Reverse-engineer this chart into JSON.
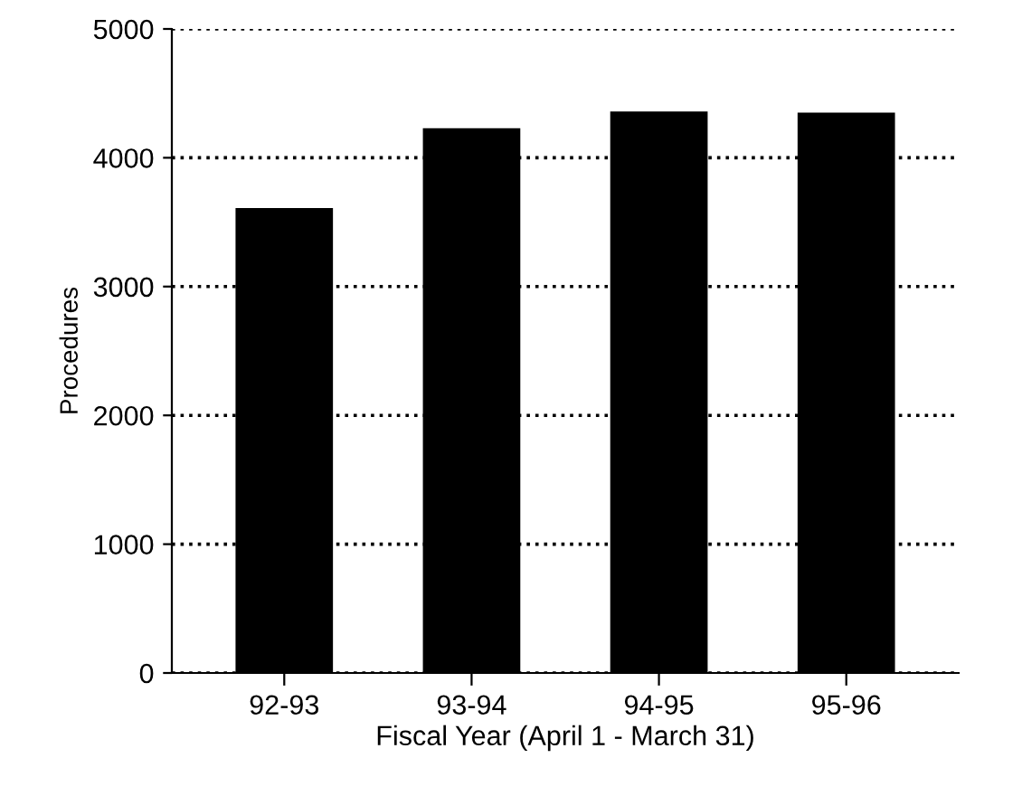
{
  "chart_data": {
    "type": "bar",
    "xlabel": "Fiscal Year (April 1 - March 31)",
    "ylabel": "Procedures",
    "categories": [
      "92-93",
      "93-94",
      "94-95",
      "95-96"
    ],
    "values": [
      3610,
      4230,
      4360,
      4350
    ],
    "color": "#000000",
    "ylim": [
      0,
      5000
    ],
    "yticks": [
      0,
      1000,
      2000,
      3000,
      4000,
      5000
    ],
    "grid": "y",
    "line_style": "dotted"
  }
}
